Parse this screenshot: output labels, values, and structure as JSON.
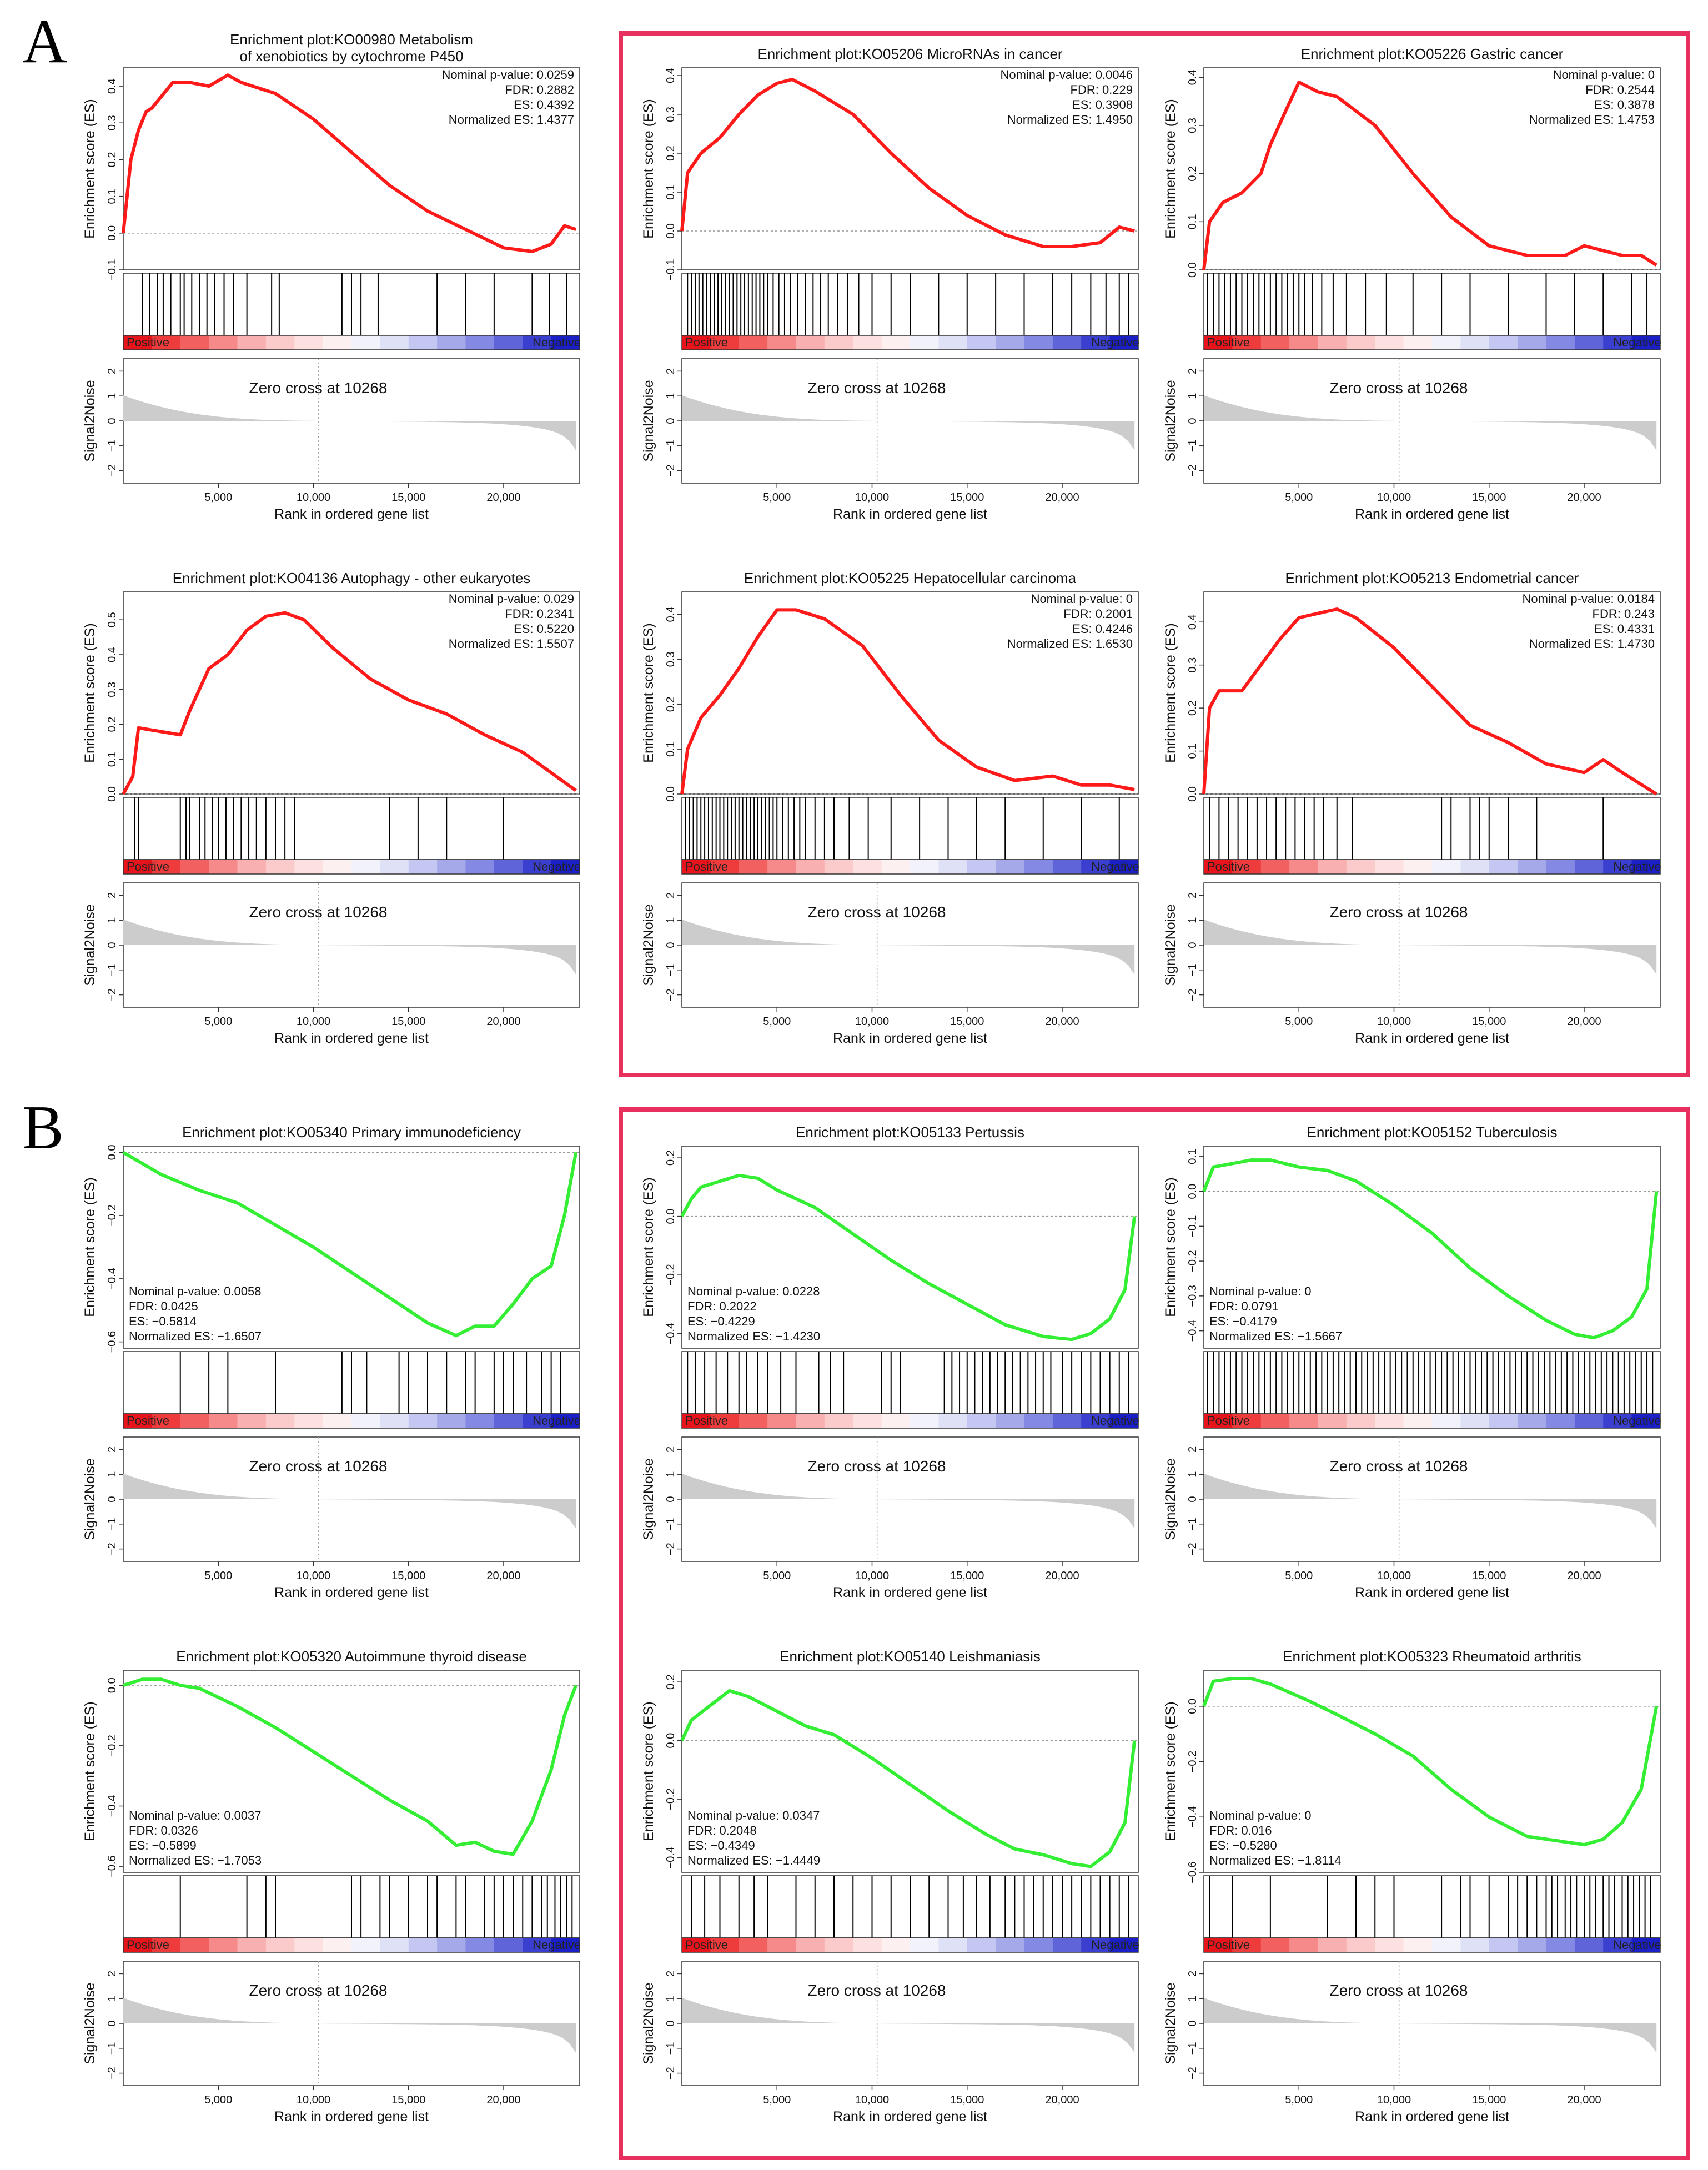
{
  "panel_labels": [
    "A",
    "B"
  ],
  "common": {
    "rank_label": "Rank in ordered gene list",
    "es_label": "Enrichment score (ES)",
    "s2n_label": "Signal2Noise",
    "zero_cross": "Zero cross at 10268",
    "positive": "Positive",
    "negative": "Negative",
    "stat_labels": [
      "Nominal p-value:",
      "FDR:",
      "ES:",
      "Normalized ES:"
    ]
  },
  "colors": {
    "up_curve": "#ff1a1a",
    "down_curve": "#33ee33",
    "highlight_box": "#e8305f",
    "s2n_fill": "#cccccc"
  },
  "chart_data": [
    {
      "id": "p1",
      "type": "line",
      "title": [
        "Enrichment plot:KO00980 Metabolism",
        "of xenobiotics by cytochrome P450"
      ],
      "stats": [
        "0.0259",
        "0.2882",
        "0.4392",
        "1.4377"
      ],
      "direction": "up",
      "ylim": [
        -0.1,
        0.45
      ],
      "yticks": [
        -0.1,
        0.0,
        0.1,
        0.2,
        0.3,
        0.4
      ],
      "x": [
        0,
        400,
        800,
        1200,
        1500,
        2600,
        3500,
        4500,
        5500,
        6200,
        8000,
        10000,
        12000,
        14000,
        16000,
        18000,
        20000,
        21500,
        22500,
        23200,
        23800
      ],
      "y": [
        0.0,
        0.2,
        0.28,
        0.33,
        0.34,
        0.41,
        0.41,
        0.4,
        0.43,
        0.41,
        0.38,
        0.31,
        0.22,
        0.13,
        0.06,
        0.01,
        -0.04,
        -0.05,
        -0.03,
        0.02,
        0.01
      ],
      "hits": [
        1000,
        1400,
        1800,
        2100,
        2500,
        3000,
        3200,
        3600,
        4000,
        4400,
        4800,
        5300,
        5800,
        6500,
        7800,
        8200,
        11500,
        12000,
        12500,
        13400,
        16500,
        18000,
        19500,
        21500,
        22400,
        23300
      ]
    },
    {
      "id": "p2",
      "type": "line",
      "title": [
        "Enrichment plot:KO05206 MicroRNAs in cancer"
      ],
      "stats": [
        "0.0046",
        "0.229",
        "0.3908",
        "1.4950"
      ],
      "direction": "up",
      "ylim": [
        -0.1,
        0.42
      ],
      "yticks": [
        -0.1,
        0.0,
        0.1,
        0.2,
        0.3,
        0.4
      ],
      "x": [
        0,
        300,
        1000,
        2000,
        3000,
        4000,
        5000,
        5800,
        7000,
        9000,
        11000,
        13000,
        15000,
        17000,
        19000,
        20500,
        22000,
        23000,
        23800
      ],
      "y": [
        0.0,
        0.15,
        0.2,
        0.24,
        0.3,
        0.35,
        0.38,
        0.39,
        0.36,
        0.3,
        0.2,
        0.11,
        0.04,
        -0.01,
        -0.04,
        -0.04,
        -0.03,
        0.01,
        0.0
      ],
      "hits": [
        300,
        500,
        700,
        900,
        1100,
        1300,
        1500,
        1700,
        1900,
        2100,
        2300,
        2500,
        2700,
        2900,
        3100,
        3300,
        3500,
        3700,
        3900,
        4100,
        4300,
        4500,
        4800,
        5100,
        5400,
        5700,
        6100,
        6500,
        6900,
        7300,
        7700,
        8200,
        8700,
        9300,
        10000,
        11000,
        12000,
        13500,
        15000,
        16500,
        18000,
        19500,
        20500,
        21500,
        22300,
        23000,
        23500
      ]
    },
    {
      "id": "p3",
      "type": "line",
      "title": [
        "Enrichment plot:KO05226 Gastric cancer"
      ],
      "stats": [
        "0",
        "0.2544",
        "0.3878",
        "1.4753"
      ],
      "direction": "up",
      "ylim": [
        0.0,
        0.42
      ],
      "yticks": [
        0.0,
        0.1,
        0.2,
        0.3,
        0.4
      ],
      "x": [
        0,
        300,
        1000,
        2000,
        3000,
        3500,
        4300,
        5000,
        6000,
        7000,
        9000,
        11000,
        13000,
        15000,
        17000,
        19000,
        20000,
        22000,
        23000,
        23800
      ],
      "y": [
        0.0,
        0.1,
        0.14,
        0.16,
        0.2,
        0.26,
        0.33,
        0.39,
        0.37,
        0.36,
        0.3,
        0.2,
        0.11,
        0.05,
        0.03,
        0.03,
        0.05,
        0.03,
        0.03,
        0.01
      ],
      "hits": [
        200,
        500,
        800,
        1100,
        1400,
        1700,
        2000,
        2300,
        2600,
        2900,
        3200,
        3500,
        3800,
        4100,
        4400,
        4700,
        5000,
        5300,
        5700,
        6200,
        6800,
        7500,
        8500,
        9600,
        11000,
        12500,
        14000,
        16000,
        18000,
        19500,
        21000,
        22500,
        23300
      ]
    },
    {
      "id": "p4",
      "type": "line",
      "title": [
        "Enrichment plot:KO04136 Autophagy - other eukaryotes"
      ],
      "stats": [
        "0.029",
        "0.2341",
        "0.5220",
        "1.5507"
      ],
      "direction": "up",
      "ylim": [
        0.0,
        0.58
      ],
      "yticks": [
        0.0,
        0.1,
        0.2,
        0.3,
        0.4,
        0.5
      ],
      "x": [
        0,
        500,
        800,
        3000,
        3500,
        4000,
        4500,
        5500,
        6500,
        7500,
        8500,
        9500,
        11000,
        13000,
        15000,
        17000,
        19000,
        21000,
        23800
      ],
      "y": [
        0.0,
        0.05,
        0.19,
        0.17,
        0.24,
        0.3,
        0.36,
        0.4,
        0.47,
        0.51,
        0.52,
        0.5,
        0.42,
        0.33,
        0.27,
        0.23,
        0.17,
        0.12,
        0.01
      ],
      "hits": [
        600,
        800,
        3000,
        3300,
        3500,
        4000,
        4300,
        4700,
        5000,
        5400,
        5800,
        6200,
        6600,
        7000,
        7500,
        8000,
        8500,
        9000,
        14000,
        15500,
        17000,
        20000
      ]
    },
    {
      "id": "p5",
      "type": "line",
      "title": [
        "Enrichment plot:KO05225 Hepatocellular carcinoma"
      ],
      "stats": [
        "0",
        "0.2001",
        "0.4246",
        "1.6530"
      ],
      "direction": "up",
      "ylim": [
        0.0,
        0.45
      ],
      "yticks": [
        0.0,
        0.1,
        0.2,
        0.3,
        0.4
      ],
      "x": [
        0,
        300,
        1000,
        2000,
        3000,
        4000,
        5000,
        6000,
        7500,
        9500,
        11500,
        13500,
        15500,
        17500,
        19500,
        21000,
        22500,
        23800
      ],
      "y": [
        0.0,
        0.1,
        0.17,
        0.22,
        0.28,
        0.35,
        0.41,
        0.41,
        0.39,
        0.33,
        0.22,
        0.12,
        0.06,
        0.03,
        0.04,
        0.02,
        0.02,
        0.01
      ],
      "hits": [
        200,
        400,
        600,
        800,
        1000,
        1200,
        1400,
        1600,
        1800,
        2000,
        2200,
        2400,
        2600,
        2800,
        3000,
        3200,
        3400,
        3600,
        3800,
        4000,
        4200,
        4400,
        4600,
        4800,
        5000,
        5300,
        5600,
        5900,
        6200,
        6500,
        7000,
        7500,
        8000,
        8800,
        9800,
        11000,
        12500,
        14000,
        15500,
        17000,
        19000,
        21000,
        23000
      ]
    },
    {
      "id": "p6",
      "type": "line",
      "title": [
        "Enrichment plot:KO05213 Endometrial cancer"
      ],
      "stats": [
        "0.0184",
        "0.243",
        "0.4331",
        "1.4730"
      ],
      "direction": "up",
      "ylim": [
        0.0,
        0.47
      ],
      "yticks": [
        0.0,
        0.1,
        0.2,
        0.3,
        0.4
      ],
      "x": [
        0,
        300,
        800,
        2000,
        3000,
        4000,
        5000,
        6000,
        7000,
        8000,
        10000,
        12000,
        14000,
        16000,
        18000,
        20000,
        21000,
        22000,
        23800
      ],
      "y": [
        0.0,
        0.2,
        0.24,
        0.24,
        0.3,
        0.36,
        0.41,
        0.42,
        0.43,
        0.41,
        0.34,
        0.25,
        0.16,
        0.12,
        0.07,
        0.05,
        0.08,
        0.05,
        0.0
      ],
      "hits": [
        300,
        800,
        1300,
        1800,
        2300,
        2800,
        3300,
        3800,
        4300,
        4800,
        5300,
        5800,
        6300,
        7000,
        7800,
        12500,
        13000,
        14000,
        14500,
        15000,
        16000,
        17500,
        21000
      ]
    },
    {
      "id": "p7",
      "type": "line",
      "title": [
        "Enrichment plot:KO05340 Primary immunodeficiency"
      ],
      "stats": [
        "0.0058",
        "0.0425",
        "-0.5814",
        "-1.6507"
      ],
      "direction": "down",
      "ylim": [
        -0.62,
        0.02
      ],
      "yticks": [
        -0.6,
        -0.4,
        -0.2,
        0.0
      ],
      "x": [
        0,
        2000,
        4000,
        6000,
        8000,
        10000,
        12000,
        14000,
        16000,
        17500,
        18500,
        19500,
        20500,
        21500,
        22500,
        23200,
        23800
      ],
      "y": [
        0.0,
        -0.07,
        -0.12,
        -0.16,
        -0.23,
        -0.3,
        -0.38,
        -0.46,
        -0.54,
        -0.58,
        -0.55,
        -0.55,
        -0.48,
        -0.4,
        -0.36,
        -0.2,
        0.0
      ],
      "hits": [
        3000,
        4500,
        5500,
        8000,
        11500,
        12000,
        12800,
        14500,
        15000,
        16000,
        17000,
        18000,
        18500,
        19500,
        20000,
        20500,
        21200,
        22000,
        22500,
        23000
      ]
    },
    {
      "id": "p8",
      "type": "line",
      "title": [
        "Enrichment plot:KO05133 Pertussis"
      ],
      "stats": [
        "0.0228",
        "0.2022",
        "-0.4229",
        "-1.4230"
      ],
      "direction": "down",
      "ylim": [
        -0.45,
        0.24
      ],
      "yticks": [
        -0.4,
        -0.2,
        0.0,
        0.2
      ],
      "x": [
        0,
        500,
        1000,
        2000,
        3000,
        4000,
        5000,
        7000,
        9000,
        11000,
        13000,
        15000,
        17000,
        19000,
        20500,
        21500,
        22500,
        23300,
        23800
      ],
      "y": [
        0.0,
        0.06,
        0.1,
        0.12,
        0.14,
        0.13,
        0.09,
        0.03,
        -0.06,
        -0.15,
        -0.23,
        -0.3,
        -0.37,
        -0.41,
        -0.42,
        -0.4,
        -0.35,
        -0.25,
        0.0
      ],
      "hits": [
        300,
        700,
        1200,
        1800,
        2400,
        3000,
        3400,
        4000,
        4500,
        5200,
        6000,
        7200,
        7800,
        8500,
        10500,
        11000,
        11500,
        13800,
        14200,
        14600,
        15000,
        15400,
        15800,
        16200,
        16600,
        17000,
        17400,
        17800,
        18200,
        18600,
        19000,
        19400,
        20000,
        20500,
        21000,
        21500,
        22000,
        22500,
        23000,
        23500
      ]
    },
    {
      "id": "p9",
      "type": "line",
      "title": [
        "Enrichment plot:KO05152 Tuberculosis"
      ],
      "stats": [
        "0",
        "0.0791",
        "-0.4179",
        "-1.5667"
      ],
      "direction": "down",
      "ylim": [
        -0.45,
        0.13
      ],
      "yticks": [
        -0.4,
        -0.3,
        -0.2,
        -0.1,
        0.0,
        0.1
      ],
      "x": [
        0,
        500,
        1500,
        2500,
        3500,
        5000,
        6500,
        8000,
        10000,
        12000,
        14000,
        16000,
        18000,
        19500,
        20500,
        21500,
        22500,
        23300,
        23800
      ],
      "y": [
        0.0,
        0.07,
        0.08,
        0.09,
        0.09,
        0.07,
        0.06,
        0.03,
        -0.04,
        -0.12,
        -0.22,
        -0.3,
        -0.37,
        -0.41,
        -0.42,
        -0.4,
        -0.36,
        -0.28,
        0.0
      ],
      "hits": [
        200,
        500,
        800,
        1100,
        1400,
        1700,
        2000,
        2300,
        2600,
        2900,
        3200,
        3500,
        3800,
        4100,
        4400,
        4700,
        5000,
        5300,
        5600,
        5900,
        6200,
        6500,
        6800,
        7100,
        7400,
        7700,
        8000,
        8300,
        8600,
        8900,
        9200,
        9500,
        9800,
        10100,
        10400,
        10700,
        11000,
        11300,
        11600,
        11900,
        12200,
        12500,
        12800,
        13100,
        13400,
        13700,
        14000,
        14300,
        14600,
        14900,
        15200,
        15500,
        15800,
        16100,
        16400,
        16700,
        17000,
        17300,
        17600,
        17900,
        18200,
        18500,
        18800,
        19100,
        19400,
        19700,
        20000,
        20300,
        20600,
        20900,
        21200,
        21500,
        21800,
        22100,
        22400,
        22700,
        23000,
        23300,
        23600
      ]
    },
    {
      "id": "p10",
      "type": "line",
      "title": [
        "Enrichment plot:KO05320 Autoimmune thyroid disease"
      ],
      "stats": [
        "0.0037",
        "0.0326",
        "-0.5899",
        "-1.7053"
      ],
      "direction": "down",
      "ylim": [
        -0.62,
        0.05
      ],
      "yticks": [
        -0.6,
        -0.4,
        -0.2,
        0.0
      ],
      "x": [
        0,
        1000,
        2000,
        3000,
        4000,
        6000,
        8000,
        10000,
        12000,
        14000,
        16000,
        17500,
        18500,
        19500,
        20500,
        21500,
        22500,
        23200,
        23800
      ],
      "y": [
        0.0,
        0.02,
        0.02,
        0.0,
        -0.01,
        -0.07,
        -0.14,
        -0.22,
        -0.3,
        -0.38,
        -0.45,
        -0.53,
        -0.52,
        -0.55,
        -0.56,
        -0.45,
        -0.28,
        -0.1,
        0.0
      ],
      "hits": [
        3000,
        6500,
        7500,
        8000,
        12000,
        12500,
        13500,
        14000,
        15000,
        16000,
        16500,
        17500,
        18000,
        19000,
        19500,
        20000,
        20500,
        21000,
        21500,
        22000,
        22300,
        22700,
        23000,
        23300,
        23600
      ]
    },
    {
      "id": "p11",
      "type": "line",
      "title": [
        "Enrichment plot:KO05140 Leishmaniasis"
      ],
      "stats": [
        "0.0347",
        "0.2048",
        "-0.4349",
        "-1.4449"
      ],
      "direction": "down",
      "ylim": [
        -0.45,
        0.24
      ],
      "yticks": [
        -0.4,
        -0.2,
        0.0,
        0.2
      ],
      "x": [
        0,
        500,
        1500,
        2500,
        3500,
        5000,
        6500,
        8000,
        10000,
        12000,
        14000,
        16000,
        17500,
        19000,
        20500,
        21500,
        22500,
        23300,
        23800
      ],
      "y": [
        0.0,
        0.07,
        0.12,
        0.17,
        0.15,
        0.1,
        0.05,
        0.02,
        -0.06,
        -0.15,
        -0.24,
        -0.32,
        -0.37,
        -0.39,
        -0.42,
        -0.43,
        -0.38,
        -0.28,
        0.0
      ],
      "hits": [
        500,
        1200,
        2000,
        3000,
        3800,
        4500,
        6000,
        7000,
        8000,
        9000,
        10000,
        11000,
        12000,
        13000,
        14000,
        14800,
        15500,
        16200,
        17000,
        17500,
        18000,
        18500,
        19000,
        19500,
        20000,
        20500,
        21000,
        21500,
        22000,
        22500,
        23000,
        23500
      ]
    },
    {
      "id": "p12",
      "type": "line",
      "title": [
        "Enrichment plot:KO05323 Rheumatoid arthritis"
      ],
      "stats": [
        "0",
        "0.016",
        "-0.5280",
        "-1.8114"
      ],
      "direction": "down",
      "ylim": [
        -0.6,
        0.13
      ],
      "yticks": [
        -0.6,
        -0.4,
        -0.2,
        0.0
      ],
      "x": [
        0,
        500,
        1500,
        2500,
        3500,
        4500,
        5500,
        7000,
        9000,
        11000,
        13000,
        15000,
        17000,
        19000,
        20000,
        21000,
        22000,
        23000,
        23800
      ],
      "y": [
        0.0,
        0.09,
        0.1,
        0.1,
        0.08,
        0.05,
        0.02,
        -0.03,
        -0.1,
        -0.18,
        -0.3,
        -0.4,
        -0.47,
        -0.49,
        -0.5,
        -0.48,
        -0.42,
        -0.3,
        0.0
      ],
      "hits": [
        300,
        1500,
        3500,
        6500,
        8000,
        9000,
        10000,
        12500,
        13500,
        14000,
        15000,
        16000,
        16500,
        17000,
        17500,
        18000,
        18300,
        18600,
        19000,
        19300,
        19600,
        20000,
        20300,
        20600,
        21000,
        21300,
        21600,
        22000,
        22300,
        22600,
        22900,
        23200,
        23500
      ]
    }
  ]
}
